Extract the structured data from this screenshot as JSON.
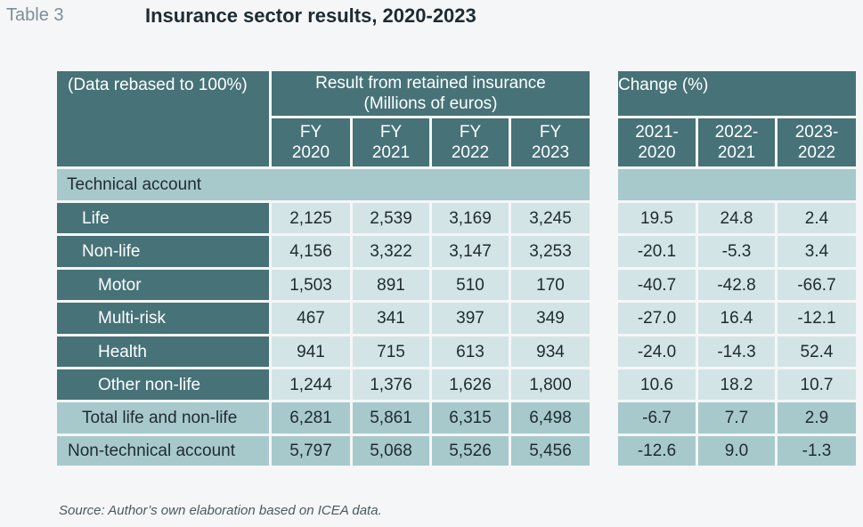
{
  "table_label": "Table 3",
  "title": "Insurance sector results, 2020-2023",
  "header": {
    "rebased": "(Data rebased to 100%)",
    "result_group_line1": "Result from retained insurance",
    "result_group_line2": "(Millions of euros)",
    "change_group": "Change (%)",
    "years": [
      {
        "l1": "FY",
        "l2": "2020"
      },
      {
        "l1": "FY",
        "l2": "2021"
      },
      {
        "l1": "FY",
        "l2": "2022"
      },
      {
        "l1": "FY",
        "l2": "2023"
      }
    ],
    "changes": [
      {
        "l1": "2021-",
        "l2": "2020"
      },
      {
        "l1": "2022-",
        "l2": "2021"
      },
      {
        "l1": "2023-",
        "l2": "2022"
      }
    ]
  },
  "section_label": "Technical account",
  "rows": [
    {
      "label": "Life",
      "values": [
        "2,125",
        "2,539",
        "3,169",
        "3,245"
      ],
      "changes": [
        "19.5",
        "24.8",
        "2.4"
      ]
    },
    {
      "label": "Non-life",
      "values": [
        "4,156",
        "3,322",
        "3,147",
        "3,253"
      ],
      "changes": [
        "-20.1",
        "-5.3",
        "3.4"
      ]
    },
    {
      "label": "Motor",
      "values": [
        "1,503",
        "891",
        "510",
        "170"
      ],
      "changes": [
        "-40.7",
        "-42.8",
        "-66.7"
      ]
    },
    {
      "label": "Multi-risk",
      "values": [
        "467",
        "341",
        "397",
        "349"
      ],
      "changes": [
        "-27.0",
        "16.4",
        "-12.1"
      ]
    },
    {
      "label": "Health",
      "values": [
        "941",
        "715",
        "613",
        "934"
      ],
      "changes": [
        "-24.0",
        "-14.3",
        "52.4"
      ]
    },
    {
      "label": "Other non-life",
      "values": [
        "1,244",
        "1,376",
        "1,626",
        "1,800"
      ],
      "changes": [
        "10.6",
        "18.2",
        "10.7"
      ]
    },
    {
      "label": "Total life and non-life",
      "values": [
        "6,281",
        "5,861",
        "6,315",
        "6,498"
      ],
      "changes": [
        "-6.7",
        "7.7",
        "2.9"
      ]
    },
    {
      "label": "Non-technical account",
      "values": [
        "5,797",
        "5,068",
        "5,526",
        "5,456"
      ],
      "changes": [
        "-12.6",
        "9.0",
        "-1.3"
      ]
    }
  ],
  "source": "Source: Author’s own elaboration based on ICEA data."
}
